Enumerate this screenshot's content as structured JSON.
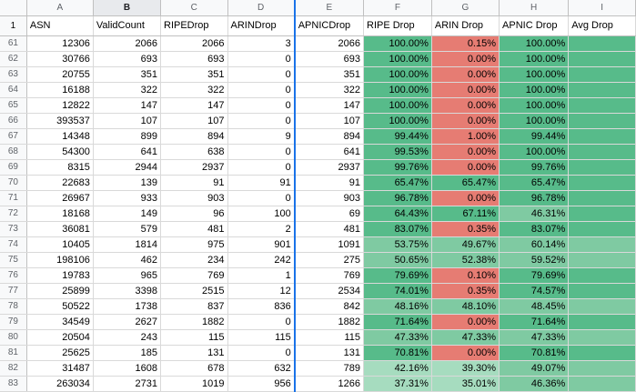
{
  "columns": [
    "A",
    "B",
    "C",
    "D",
    "E",
    "F",
    "G",
    "H",
    "I"
  ],
  "header_row": {
    "num": "1",
    "cells": [
      "ASN",
      "ValidCount",
      "RIPEDrop",
      "ARINDrop",
      "APNICDrop",
      "RIPE Drop",
      "ARIN Drop",
      "APNIC Drop",
      "Avg Drop"
    ]
  },
  "colors": {
    "green_strong": "#57bb8a",
    "green_mid": "#7fcaa2",
    "green_light": "#a6dcbf",
    "red": "#e67c73",
    "red_soft": "#ea9690"
  },
  "rows": [
    {
      "num": "61",
      "cells": [
        "12306",
        "2066",
        "2066",
        "3",
        "2066",
        "100.00%",
        "0.15%",
        "100.00%",
        ""
      ],
      "colors": [
        "g",
        "r",
        "g",
        "g"
      ]
    },
    {
      "num": "62",
      "cells": [
        "30766",
        "693",
        "693",
        "0",
        "693",
        "100.00%",
        "0.00%",
        "100.00%",
        ""
      ],
      "colors": [
        "g",
        "r",
        "g",
        "g"
      ]
    },
    {
      "num": "63",
      "cells": [
        "20755",
        "351",
        "351",
        "0",
        "351",
        "100.00%",
        "0.00%",
        "100.00%",
        ""
      ],
      "colors": [
        "g",
        "r",
        "g",
        "g"
      ]
    },
    {
      "num": "64",
      "cells": [
        "16188",
        "322",
        "322",
        "0",
        "322",
        "100.00%",
        "0.00%",
        "100.00%",
        ""
      ],
      "colors": [
        "g",
        "r",
        "g",
        "g"
      ]
    },
    {
      "num": "65",
      "cells": [
        "12822",
        "147",
        "147",
        "0",
        "147",
        "100.00%",
        "0.00%",
        "100.00%",
        ""
      ],
      "colors": [
        "g",
        "r",
        "g",
        "g"
      ]
    },
    {
      "num": "66",
      "cells": [
        "393537",
        "107",
        "107",
        "0",
        "107",
        "100.00%",
        "0.00%",
        "100.00%",
        ""
      ],
      "colors": [
        "g",
        "r",
        "g",
        "g"
      ]
    },
    {
      "num": "67",
      "cells": [
        "14348",
        "899",
        "894",
        "9",
        "894",
        "99.44%",
        "1.00%",
        "99.44%",
        ""
      ],
      "colors": [
        "g",
        "r",
        "g",
        "g"
      ]
    },
    {
      "num": "68",
      "cells": [
        "54300",
        "641",
        "638",
        "0",
        "641",
        "99.53%",
        "0.00%",
        "100.00%",
        ""
      ],
      "colors": [
        "g",
        "r",
        "g",
        "g"
      ]
    },
    {
      "num": "69",
      "cells": [
        "8315",
        "2944",
        "2937",
        "0",
        "2937",
        "99.76%",
        "0.00%",
        "99.76%",
        ""
      ],
      "colors": [
        "g",
        "r",
        "g",
        "g"
      ]
    },
    {
      "num": "70",
      "cells": [
        "22683",
        "139",
        "91",
        "91",
        "91",
        "65.47%",
        "65.47%",
        "65.47%",
        ""
      ],
      "colors": [
        "g",
        "g",
        "g",
        "g"
      ]
    },
    {
      "num": "71",
      "cells": [
        "26967",
        "933",
        "903",
        "0",
        "903",
        "96.78%",
        "0.00%",
        "96.78%",
        ""
      ],
      "colors": [
        "g",
        "r",
        "g",
        "g"
      ]
    },
    {
      "num": "72",
      "cells": [
        "18168",
        "149",
        "96",
        "100",
        "69",
        "64.43%",
        "67.11%",
        "46.31%",
        ""
      ],
      "colors": [
        "g",
        "g",
        "m",
        "g"
      ]
    },
    {
      "num": "73",
      "cells": [
        "36081",
        "579",
        "481",
        "2",
        "481",
        "83.07%",
        "0.35%",
        "83.07%",
        ""
      ],
      "colors": [
        "g",
        "r",
        "g",
        "g"
      ]
    },
    {
      "num": "74",
      "cells": [
        "10405",
        "1814",
        "975",
        "901",
        "1091",
        "53.75%",
        "49.67%",
        "60.14%",
        ""
      ],
      "colors": [
        "m",
        "m",
        "m",
        "m"
      ]
    },
    {
      "num": "75",
      "cells": [
        "198106",
        "462",
        "234",
        "242",
        "275",
        "50.65%",
        "52.38%",
        "59.52%",
        ""
      ],
      "colors": [
        "m",
        "m",
        "m",
        "m"
      ]
    },
    {
      "num": "76",
      "cells": [
        "19783",
        "965",
        "769",
        "1",
        "769",
        "79.69%",
        "0.10%",
        "79.69%",
        ""
      ],
      "colors": [
        "g",
        "r",
        "g",
        "g"
      ]
    },
    {
      "num": "77",
      "cells": [
        "25899",
        "3398",
        "2515",
        "12",
        "2534",
        "74.01%",
        "0.35%",
        "74.57%",
        ""
      ],
      "colors": [
        "g",
        "r",
        "g",
        "g"
      ]
    },
    {
      "num": "78",
      "cells": [
        "50522",
        "1738",
        "837",
        "836",
        "842",
        "48.16%",
        "48.10%",
        "48.45%",
        ""
      ],
      "colors": [
        "m",
        "m",
        "m",
        "m"
      ]
    },
    {
      "num": "79",
      "cells": [
        "34549",
        "2627",
        "1882",
        "0",
        "1882",
        "71.64%",
        "0.00%",
        "71.64%",
        ""
      ],
      "colors": [
        "g",
        "r",
        "g",
        "g"
      ]
    },
    {
      "num": "80",
      "cells": [
        "20504",
        "243",
        "115",
        "115",
        "115",
        "47.33%",
        "47.33%",
        "47.33%",
        ""
      ],
      "colors": [
        "m",
        "m",
        "m",
        "m"
      ]
    },
    {
      "num": "81",
      "cells": [
        "25625",
        "185",
        "131",
        "0",
        "131",
        "70.81%",
        "0.00%",
        "70.81%",
        ""
      ],
      "colors": [
        "g",
        "r",
        "g",
        "g"
      ]
    },
    {
      "num": "82",
      "cells": [
        "31487",
        "1608",
        "678",
        "632",
        "789",
        "42.16%",
        "39.30%",
        "49.07%",
        ""
      ],
      "colors": [
        "l",
        "l",
        "m",
        "m"
      ]
    },
    {
      "num": "83",
      "cells": [
        "263034",
        "2731",
        "1019",
        "956",
        "1266",
        "37.31%",
        "35.01%",
        "46.36%",
        ""
      ],
      "colors": [
        "l",
        "l",
        "m",
        "m"
      ]
    }
  ]
}
